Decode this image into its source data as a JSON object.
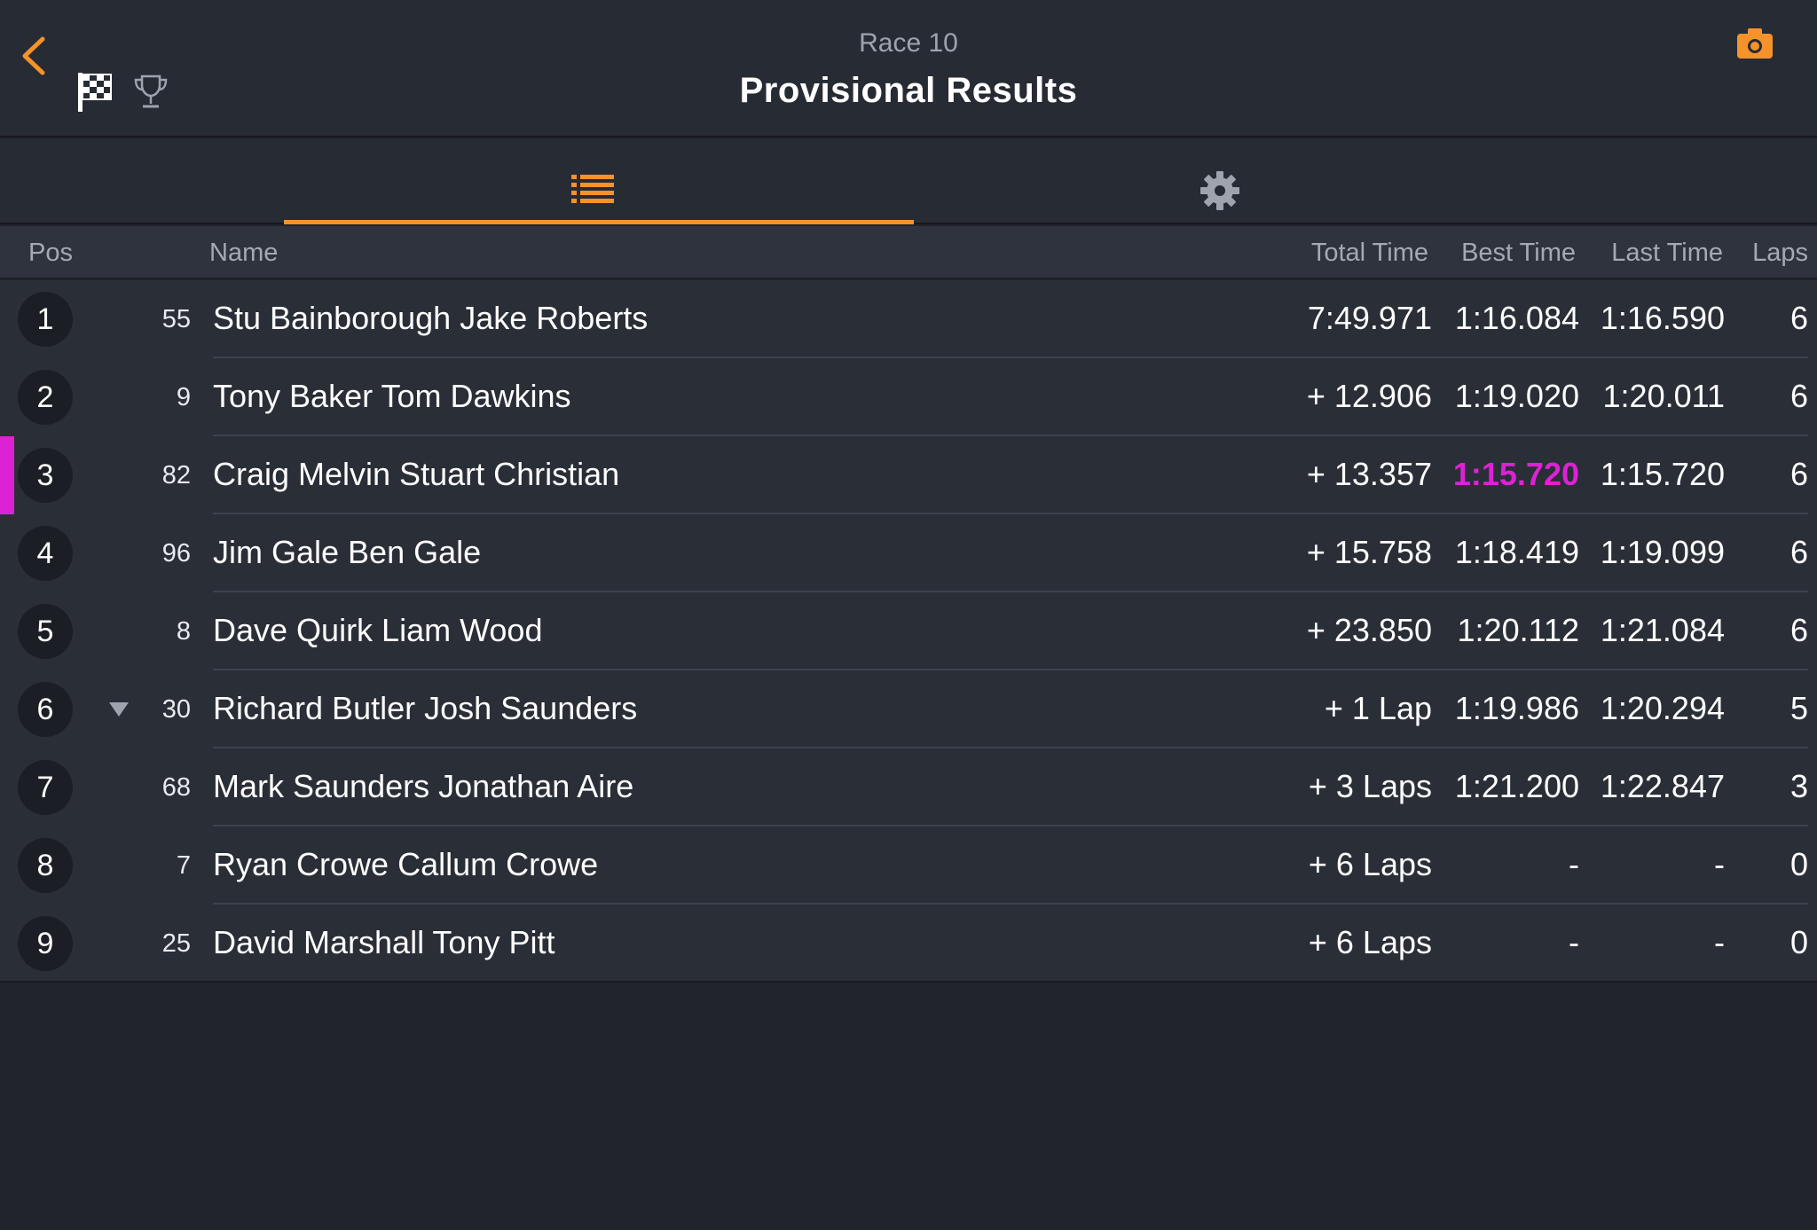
{
  "header": {
    "race_label": "Race 10",
    "title": "Provisional Results",
    "accent_color": "#f5932a",
    "icons": [
      "back-chevron-icon",
      "checkered-flag-icon",
      "trophy-icon",
      "camera-icon"
    ]
  },
  "tabs": [
    {
      "name": "results-list",
      "icon": "list-icon",
      "selected": true
    },
    {
      "name": "settings",
      "icon": "gear-icon",
      "selected": false
    }
  ],
  "columns": {
    "pos": "Pos",
    "name": "Name",
    "total": "Total Time",
    "best": "Best Time",
    "last": "Last Time",
    "laps": "Laps"
  },
  "rows": [
    {
      "pos": "1",
      "car": "55",
      "name": "Stu Bainborough Jake Roberts",
      "total": "7:49.971",
      "best": "1:16.084",
      "last": "1:16.590",
      "laps": "6"
    },
    {
      "pos": "2",
      "car": "9",
      "name": "Tony Baker Tom Dawkins",
      "total": "+ 12.906",
      "best": "1:19.020",
      "last": "1:20.011",
      "laps": "6"
    },
    {
      "pos": "3",
      "car": "82",
      "name": "Craig Melvin Stuart Christian",
      "total": "+ 13.357",
      "best": "1:15.720",
      "last": "1:15.720",
      "laps": "6",
      "fastest_lap": true,
      "highlight_color": "#dd22d4"
    },
    {
      "pos": "4",
      "car": "96",
      "name": "Jim Gale Ben Gale",
      "total": "+ 15.758",
      "best": "1:18.419",
      "last": "1:19.099",
      "laps": "6"
    },
    {
      "pos": "5",
      "car": "8",
      "name": "Dave Quirk Liam Wood",
      "total": "+ 23.850",
      "best": "1:20.112",
      "last": "1:21.084",
      "laps": "6"
    },
    {
      "pos": "6",
      "car": "30",
      "name": "Richard Butler Josh Saunders",
      "total": "+ 1 Lap",
      "best": "1:19.986",
      "last": "1:20.294",
      "laps": "5",
      "trend": "down",
      "trend_icon": "triangle-down-icon"
    },
    {
      "pos": "7",
      "car": "68",
      "name": "Mark Saunders Jonathan Aire",
      "total": "+ 3 Laps",
      "best": "1:21.200",
      "last": "1:22.847",
      "laps": "3"
    },
    {
      "pos": "8",
      "car": "7",
      "name": "Ryan Crowe Callum Crowe",
      "total": "+ 6 Laps",
      "best": "-",
      "last": "-",
      "laps": "0"
    },
    {
      "pos": "9",
      "car": "25",
      "name": "David Marshall Tony Pitt",
      "total": "+ 6 Laps",
      "best": "-",
      "last": "-",
      "laps": "0"
    }
  ]
}
